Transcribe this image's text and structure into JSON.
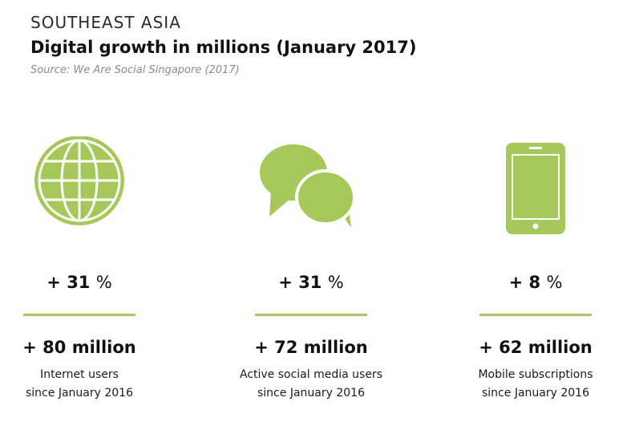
{
  "header": {
    "kicker": "SOUTHEAST ASIA",
    "title": "Digital growth in millions (January 2017)",
    "source": "Source: We Are Social Singapore (2017)"
  },
  "accent_color": "#a6c85a",
  "stats": [
    {
      "icon": "globe-icon",
      "percent_value": "+ 31",
      "percent_unit": "%",
      "amount": "+ 80 million",
      "label_line1": "Internet users",
      "label_line2": "since January 2016"
    },
    {
      "icon": "speech-bubbles-icon",
      "percent_value": "+ 31",
      "percent_unit": "%",
      "amount": "+ 72 million",
      "label_line1": "Active social media users",
      "label_line2": "since January 2016"
    },
    {
      "icon": "mobile-phone-icon",
      "percent_value": "+ 8",
      "percent_unit": "%",
      "amount": "+ 62 million",
      "label_line1": "Mobile subscriptions",
      "label_line2": "since January 2016"
    }
  ]
}
